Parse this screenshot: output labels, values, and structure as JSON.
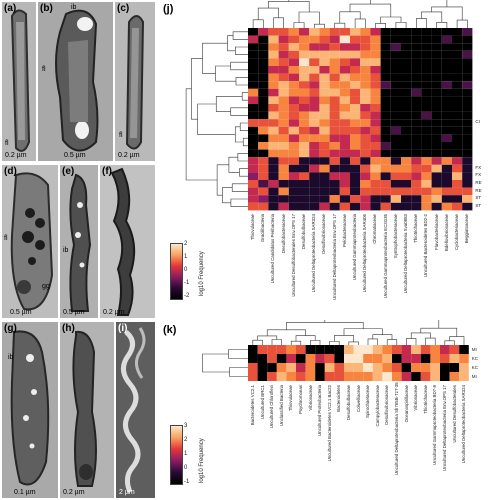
{
  "panels": [
    {
      "id": "a",
      "label": "(a)",
      "scale": "0.2 µm",
      "annotations": [
        "fl"
      ]
    },
    {
      "id": "b",
      "label": "(b)",
      "scale": "0.5 µm",
      "annotations": [
        "ib",
        "fl"
      ]
    },
    {
      "id": "c",
      "label": "(c)",
      "scale": "0.2 µm",
      "annotations": [
        "fl"
      ]
    },
    {
      "id": "d",
      "label": "(d)",
      "scale": "0.5 µm",
      "annotations": [
        "fl",
        "gg"
      ]
    },
    {
      "id": "e",
      "label": "(e)",
      "scale": "0.5 µm",
      "annotations": [
        "ib"
      ]
    },
    {
      "id": "f",
      "label": "(f)",
      "scale": "0.2 µm",
      "annotations": []
    },
    {
      "id": "g",
      "label": "(g)",
      "scale": "0.1 µm",
      "annotations": [
        "ib"
      ]
    },
    {
      "id": "h",
      "label": "(h)",
      "scale": "0.2 µm",
      "annotations": []
    },
    {
      "id": "i",
      "label": "(i)",
      "scale": "2 µm",
      "annotations": []
    }
  ],
  "heatmap_j": {
    "label": "(j)",
    "legend_title": "log10 Frequency",
    "legend_ticks": [
      "2",
      "1",
      "0",
      "-1",
      "-2"
    ],
    "row_labels": [
      "CI",
      "FX",
      "FX",
      "RE",
      "RE",
      "ST",
      "ST"
    ],
    "columns": [
      "Thiovulaceae",
      "Gracilibacteria",
      "Uncultured Candidatus Peribacteria",
      "Desulfobacteraceae",
      "Uncultured Desulfobacterales Env.OPS 17",
      "Desulfobulbaceae",
      "Uncultured Deltaproteobacteria SAR324",
      "Desulfovibrionaceae",
      "Uncultured Deltaproteobacteria Env.OPS 17",
      "Pelobacteraceae",
      "Uncultured Gammaproteobacteria",
      "Uncultured Deltaproteobacteria SAR406",
      "Chromatiaceae",
      "Uncultured Gammaproteobacteria EC3G35",
      "Syntrophobacteraceae",
      "Uncultured Deltaproteobacteria Sva0853",
      "Thiotrichaceae",
      "Uncultured Bacteroidetes BD2-2",
      "Flavobacteriaceae",
      "Bdellovibrionaceae",
      "Cyclobacteriaceae",
      "Beggiatoaceae"
    ]
  },
  "heatmap_k": {
    "label": "(k)",
    "legend_title": "log10 Frequency",
    "legend_ticks": [
      "3",
      "2",
      "1",
      "0",
      "-1"
    ],
    "row_labels": [
      "MI",
      "KC",
      "KC",
      "MI"
    ],
    "columns": [
      "Bacteroidetes VC2.1",
      "Uncultured BRC1",
      "Uncultured Chloroflexi",
      "Unclassified Bacteria",
      "Thiovulaceae",
      "Psychromonas",
      "Vibrionaceae",
      "Uncultured Proteobacteria",
      "Uncultured Bacteroidetes VC2.1 Bac22",
      "Bacteroidetes",
      "Desulfobulbaceae",
      "Colwelliaceae",
      "Spirochaetaceae",
      "Campylobacteraceae",
      "Desulfovibrionaceae",
      "Uncultured Deltaproteobacteria Sh765B-TzT-35",
      "Oceanospirillaceae",
      "Vibrionaceae",
      "Thiotrichaceae",
      "Uncultured Gammaproteobacteria BD7-8",
      "Uncultured Deltaproteobacteria Env.OPS 17",
      "Uncultured Desulfobacterales",
      "Uncultured Deltaproteobacteria SAR324"
    ]
  }
}
